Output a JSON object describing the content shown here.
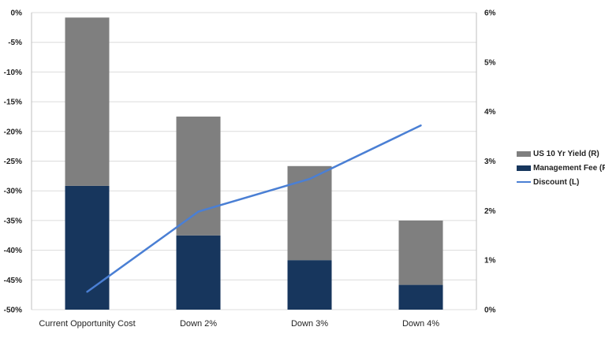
{
  "chart_data": {
    "type": "bar",
    "title": "",
    "xlabel": "",
    "categories": [
      "Current Opportunity Cost",
      "Down 2%",
      "Down 3%",
      "Down 4%"
    ],
    "series": [
      {
        "name": "US 10 Yr Yield  (R)",
        "kind": "stacked-bar",
        "axis": "right",
        "values": [
          3.4,
          2.4,
          1.9,
          1.3
        ],
        "color": "#7f7f7f"
      },
      {
        "name": "Management Fee (R)",
        "kind": "stacked-bar",
        "axis": "right",
        "values": [
          2.5,
          1.5,
          1.0,
          0.5
        ],
        "color": "#17365d"
      },
      {
        "name": "Discount (L)",
        "kind": "line",
        "axis": "left",
        "values": [
          -47,
          -33.5,
          -28,
          -19
        ],
        "color": "#4a7fd4"
      }
    ],
    "y_left": {
      "range": [
        -50,
        0
      ],
      "ticks": [
        "0%",
        "-5%",
        "-10%",
        "-15%",
        "-20%",
        "-25%",
        "-30%",
        "-35%",
        "-40%",
        "-45%",
        "-50%"
      ]
    },
    "y_right": {
      "range": [
        0,
        6
      ],
      "ticks": [
        "6%",
        "5%",
        "4%",
        "3%",
        "2%",
        "1%",
        "0%"
      ]
    },
    "grid": true,
    "legend": "right"
  }
}
